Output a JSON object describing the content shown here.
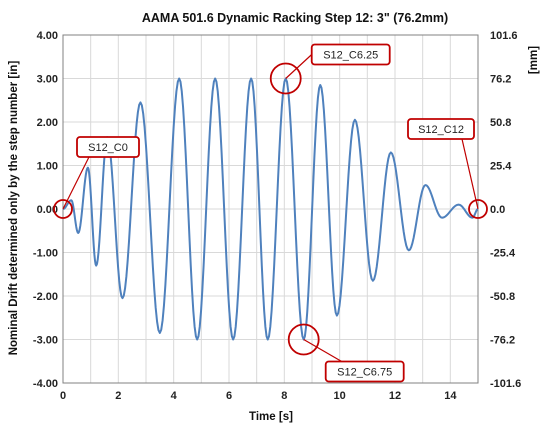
{
  "chart_data": {
    "type": "line",
    "title": "AAMA 501.6 Dynamic Racking Step 12: 3\" (76.2mm)",
    "xlabel": "Time [s]",
    "ylabel": "Nominal Drift determined only by the step number  [in]",
    "y2label": "[mm]",
    "xlim": [
      0,
      15
    ],
    "ylim": [
      -4,
      4
    ],
    "y2lim": [
      -101.6,
      101.6
    ],
    "x_ticks": [
      "0",
      "2",
      "4",
      "6",
      "8",
      "10",
      "12",
      "14"
    ],
    "y_ticks": [
      "4.00",
      "3.00",
      "2.00",
      "1.00",
      "0.00",
      "-1.00",
      "-2.00",
      "-3.00",
      "-4.00"
    ],
    "y2_ticks": [
      "101.6",
      "76.2",
      "50.8",
      "25.4",
      "0.0",
      "-25.4",
      "-50.8",
      "-76.2",
      "-101.6"
    ],
    "grid": true,
    "colors": {
      "line": "#4f81bd",
      "callout": "#c00000",
      "grid": "#d9d9d9"
    },
    "series": [
      {
        "x": [
          0,
          0.3,
          0.55,
          0.9,
          1.2,
          1.6,
          2.15,
          2.8,
          3.5,
          4.2,
          4.85,
          5.5,
          6.15,
          6.8,
          7.4,
          8.05,
          8.7,
          9.3,
          9.9,
          10.55,
          11.2,
          11.85,
          12.5,
          13.1,
          13.7,
          14.3,
          14.8,
          15
        ],
        "y": [
          0,
          0.2,
          -0.55,
          0.95,
          -1.3,
          1.65,
          -2.05,
          2.45,
          -2.85,
          3.0,
          -3.0,
          3.0,
          -3.0,
          3.0,
          -3.0,
          3.0,
          -3.0,
          2.85,
          -2.45,
          2.05,
          -1.65,
          1.3,
          -0.95,
          0.55,
          -0.2,
          0.1,
          -0.2,
          0
        ]
      }
    ],
    "annotations": [
      {
        "label": "S12_C0",
        "x": 0,
        "y": 0
      },
      {
        "label": "S12_C6.25",
        "x": 8.05,
        "y": 3.0
      },
      {
        "label": "S12_C6.75",
        "x": 8.7,
        "y": -3.0
      },
      {
        "label": "S12_C12",
        "x": 15,
        "y": 0
      }
    ]
  }
}
